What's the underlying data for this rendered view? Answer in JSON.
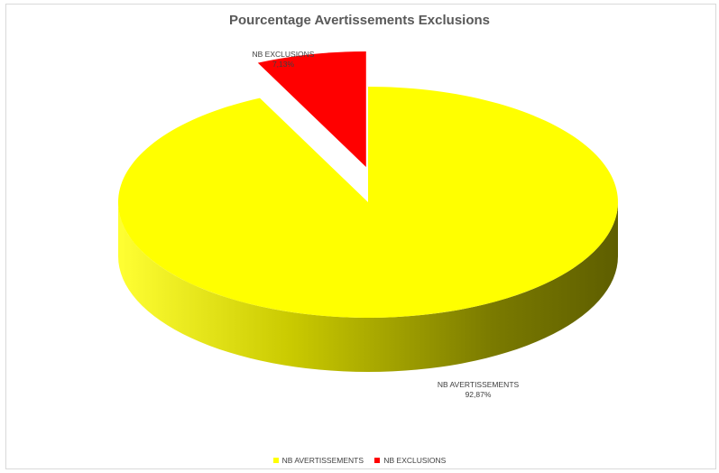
{
  "chart_data": {
    "type": "pie",
    "title": "Pourcentage Avertissements Exclusions",
    "categories": [
      "NB AVERTISSEMENTS",
      "NB EXCLUSIONS"
    ],
    "values": [
      92.87,
      7.13
    ],
    "data_labels": [
      {
        "name": "NB AVERTISSEMENTS",
        "value": "92,87%"
      },
      {
        "name": "NB EXCLUSIONS",
        "value": "7,13%"
      }
    ],
    "colors": [
      "#FFFF00",
      "#FF0000"
    ],
    "legend_position": "bottom",
    "exploded": "NB EXCLUSIONS",
    "style": "3d"
  }
}
